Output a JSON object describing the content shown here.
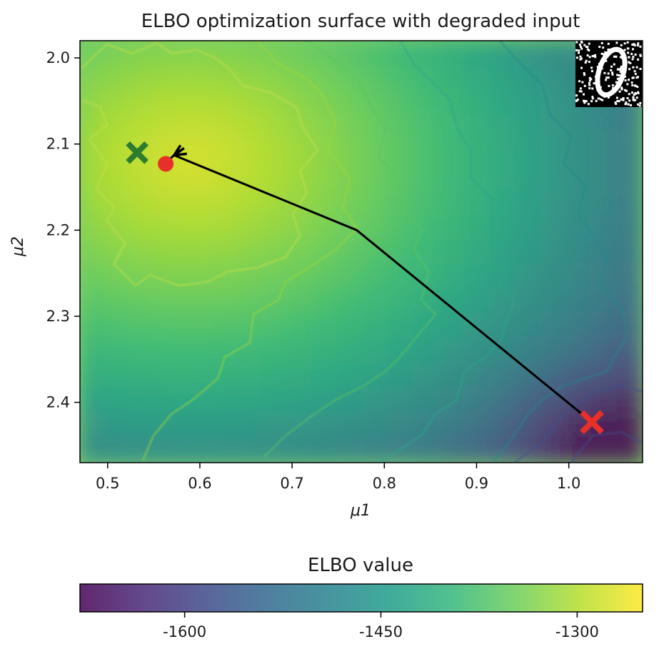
{
  "chart_data": {
    "type": "heatmap",
    "title": "ELBO optimization surface with degraded input",
    "xlabel": "μ1",
    "ylabel": "μ2",
    "xlim": [
      0.47,
      1.08
    ],
    "ylim": [
      2.47,
      1.98
    ],
    "x_ticks": [
      0.5,
      0.6,
      0.7,
      0.8,
      0.9,
      1.0
    ],
    "x_tick_labels": [
      "0.5",
      "0.6",
      "0.7",
      "0.8",
      "0.9",
      "1.0"
    ],
    "y_ticks": [
      2.0,
      2.1,
      2.2,
      2.3,
      2.4
    ],
    "y_tick_labels": [
      "2.0",
      "2.1",
      "2.2",
      "2.3",
      "2.4"
    ],
    "colormap": "viridis",
    "surface_peak": {
      "x": 0.59,
      "y": 2.12,
      "value": -1260
    },
    "surface_trough": {
      "x": 1.04,
      "y": 2.44,
      "value": -1650
    },
    "optimization_path": {
      "x": [
        1.025,
        0.77,
        0.572,
        0.567,
        0.565
      ],
      "y": [
        2.423,
        2.2,
        2.113,
        2.118,
        2.12
      ],
      "color": "#000000"
    },
    "markers": [
      {
        "name": "start",
        "symbol": "x",
        "x": 1.025,
        "y": 2.423,
        "color": "#e8302a"
      },
      {
        "name": "end",
        "symbol": "o",
        "x": 0.563,
        "y": 2.123,
        "color": "#e8302a"
      },
      {
        "name": "target",
        "symbol": "x",
        "x": 0.532,
        "y": 2.11,
        "color": "#2e7d2e"
      }
    ],
    "inset_image": "degraded-digit-zero",
    "colorbar": {
      "label": "ELBO value",
      "range": [
        -1680,
        -1250
      ],
      "ticks": [
        -1600,
        -1450,
        -1300
      ],
      "tick_labels": [
        "-1600",
        "-1450",
        "-1300"
      ],
      "orientation": "horizontal"
    }
  },
  "colors": {
    "viridis": [
      "#440154",
      "#482878",
      "#3e4989",
      "#31688e",
      "#26828e",
      "#1f9e89",
      "#35b779",
      "#6ece58",
      "#b5de2b",
      "#fde725"
    ],
    "path": "#000000",
    "start_marker": "#e8302a",
    "end_marker": "#e8302a",
    "target_marker": "#2e7d2e"
  }
}
